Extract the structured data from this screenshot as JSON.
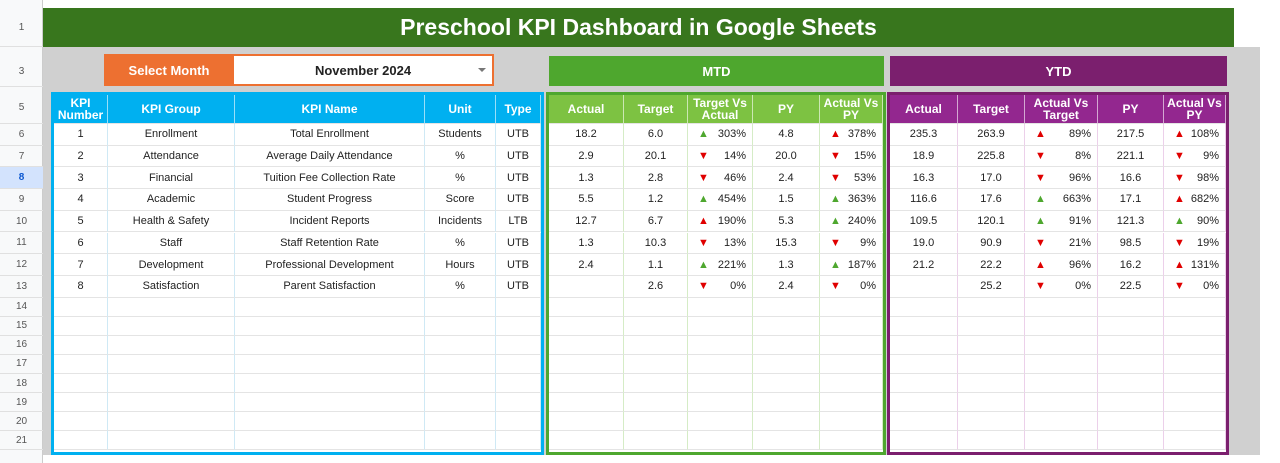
{
  "title": "Preschool KPI Dashboard in Google Sheets",
  "select_month_label": "Select Month",
  "selected_month": "November 2024",
  "row_numbers": [
    "1",
    "3",
    "5",
    "6",
    "7",
    "8",
    "9",
    "10",
    "11",
    "12",
    "13",
    "14",
    "15",
    "16",
    "17",
    "18",
    "19",
    "20",
    "21"
  ],
  "selected_row": "8",
  "colors": {
    "title": "#38761d",
    "select": "#ed7031",
    "kpi": "#00b0f0",
    "mtd": "#4ea72e",
    "mtd_header": "#7dc242",
    "ytd": "#7b1f6e",
    "ytd_header": "#93278f",
    "up_good": "#4ea72e",
    "bad": "#e00000"
  },
  "kpi": {
    "headers": [
      "KPI Number",
      "KPI Group",
      "KPI Name",
      "Unit",
      "Type"
    ],
    "rows": [
      [
        "1",
        "Enrollment",
        "Total Enrollment",
        "Students",
        "UTB"
      ],
      [
        "2",
        "Attendance",
        "Average Daily Attendance",
        "%",
        "UTB"
      ],
      [
        "3",
        "Financial",
        "Tuition Fee Collection Rate",
        "%",
        "UTB"
      ],
      [
        "4",
        "Academic",
        "Student Progress",
        "Score",
        "UTB"
      ],
      [
        "5",
        "Health & Safety",
        "Incident Reports",
        "Incidents",
        "LTB"
      ],
      [
        "6",
        "Staff",
        "Staff Retention Rate",
        "%",
        "UTB"
      ],
      [
        "7",
        "Development",
        "Professional Development",
        "Hours",
        "UTB"
      ],
      [
        "8",
        "Satisfaction",
        "Parent Satisfaction",
        "%",
        "UTB"
      ]
    ]
  },
  "mtd": {
    "label": "MTD",
    "headers": [
      "Actual",
      "Target",
      "Target Vs Actual",
      "PY",
      "Actual Vs PY"
    ],
    "rows": [
      [
        "18.2",
        "6.0",
        {
          "dir": "up",
          "color": "green",
          "pct": "303%"
        },
        "4.8",
        {
          "dir": "up",
          "color": "red",
          "pct": "378%"
        }
      ],
      [
        "2.9",
        "20.1",
        {
          "dir": "down",
          "color": "red",
          "pct": "14%"
        },
        "20.0",
        {
          "dir": "down",
          "color": "red",
          "pct": "15%"
        }
      ],
      [
        "1.3",
        "2.8",
        {
          "dir": "down",
          "color": "red",
          "pct": "46%"
        },
        "2.4",
        {
          "dir": "down",
          "color": "red",
          "pct": "53%"
        }
      ],
      [
        "5.5",
        "1.2",
        {
          "dir": "up",
          "color": "green",
          "pct": "454%"
        },
        "1.5",
        {
          "dir": "up",
          "color": "green",
          "pct": "363%"
        }
      ],
      [
        "12.7",
        "6.7",
        {
          "dir": "up",
          "color": "red",
          "pct": "190%"
        },
        "5.3",
        {
          "dir": "up",
          "color": "green",
          "pct": "240%"
        }
      ],
      [
        "1.3",
        "10.3",
        {
          "dir": "down",
          "color": "red",
          "pct": "13%"
        },
        "15.3",
        {
          "dir": "down",
          "color": "red",
          "pct": "9%"
        }
      ],
      [
        "2.4",
        "1.1",
        {
          "dir": "up",
          "color": "green",
          "pct": "221%"
        },
        "1.3",
        {
          "dir": "up",
          "color": "green",
          "pct": "187%"
        }
      ],
      [
        "",
        "2.6",
        {
          "dir": "down",
          "color": "red",
          "pct": "0%"
        },
        "2.4",
        {
          "dir": "down",
          "color": "red",
          "pct": "0%"
        }
      ]
    ]
  },
  "ytd": {
    "label": "YTD",
    "headers": [
      "Actual",
      "Target",
      "Actual Vs Target",
      "PY",
      "Actual Vs PY"
    ],
    "rows": [
      [
        "235.3",
        "263.9",
        {
          "dir": "up",
          "color": "red",
          "pct": "89%"
        },
        "217.5",
        {
          "dir": "up",
          "color": "red",
          "pct": "108%"
        }
      ],
      [
        "18.9",
        "225.8",
        {
          "dir": "down",
          "color": "red",
          "pct": "8%"
        },
        "221.1",
        {
          "dir": "down",
          "color": "red",
          "pct": "9%"
        }
      ],
      [
        "16.3",
        "17.0",
        {
          "dir": "down",
          "color": "red",
          "pct": "96%"
        },
        "16.6",
        {
          "dir": "down",
          "color": "red",
          "pct": "98%"
        }
      ],
      [
        "116.6",
        "17.6",
        {
          "dir": "up",
          "color": "green",
          "pct": "663%"
        },
        "17.1",
        {
          "dir": "up",
          "color": "red",
          "pct": "682%"
        }
      ],
      [
        "109.5",
        "120.1",
        {
          "dir": "up",
          "color": "green",
          "pct": "91%"
        },
        "121.3",
        {
          "dir": "up",
          "color": "green",
          "pct": "90%"
        }
      ],
      [
        "19.0",
        "90.9",
        {
          "dir": "down",
          "color": "red",
          "pct": "21%"
        },
        "98.5",
        {
          "dir": "down",
          "color": "red",
          "pct": "19%"
        }
      ],
      [
        "21.2",
        "22.2",
        {
          "dir": "up",
          "color": "red",
          "pct": "96%"
        },
        "16.2",
        {
          "dir": "up",
          "color": "red",
          "pct": "131%"
        }
      ],
      [
        "",
        "25.2",
        {
          "dir": "down",
          "color": "red",
          "pct": "0%"
        },
        "22.5",
        {
          "dir": "down",
          "color": "red",
          "pct": "0%"
        }
      ]
    ]
  }
}
